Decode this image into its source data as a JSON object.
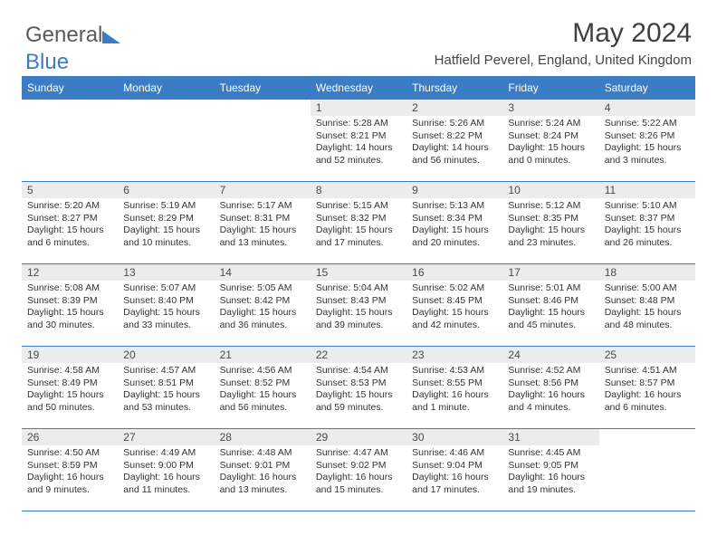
{
  "logo": {
    "text1": "General",
    "text2": "Blue"
  },
  "header": {
    "month": "May 2024",
    "location": "Hatfield Peverel, England, United Kingdom"
  },
  "colors": {
    "header_bg": "#3b7dc4",
    "header_text": "#ffffff",
    "daynum_bg": "#ececec",
    "border": "#3b7dc4"
  },
  "dayLabels": [
    "Sunday",
    "Monday",
    "Tuesday",
    "Wednesday",
    "Thursday",
    "Friday",
    "Saturday"
  ],
  "weeks": [
    [
      null,
      null,
      null,
      {
        "n": "1",
        "sr": "Sunrise: 5:28 AM",
        "ss": "Sunset: 8:21 PM",
        "dl": "Daylight: 14 hours and 52 minutes."
      },
      {
        "n": "2",
        "sr": "Sunrise: 5:26 AM",
        "ss": "Sunset: 8:22 PM",
        "dl": "Daylight: 14 hours and 56 minutes."
      },
      {
        "n": "3",
        "sr": "Sunrise: 5:24 AM",
        "ss": "Sunset: 8:24 PM",
        "dl": "Daylight: 15 hours and 0 minutes."
      },
      {
        "n": "4",
        "sr": "Sunrise: 5:22 AM",
        "ss": "Sunset: 8:26 PM",
        "dl": "Daylight: 15 hours and 3 minutes."
      }
    ],
    [
      {
        "n": "5",
        "sr": "Sunrise: 5:20 AM",
        "ss": "Sunset: 8:27 PM",
        "dl": "Daylight: 15 hours and 6 minutes."
      },
      {
        "n": "6",
        "sr": "Sunrise: 5:19 AM",
        "ss": "Sunset: 8:29 PM",
        "dl": "Daylight: 15 hours and 10 minutes."
      },
      {
        "n": "7",
        "sr": "Sunrise: 5:17 AM",
        "ss": "Sunset: 8:31 PM",
        "dl": "Daylight: 15 hours and 13 minutes."
      },
      {
        "n": "8",
        "sr": "Sunrise: 5:15 AM",
        "ss": "Sunset: 8:32 PM",
        "dl": "Daylight: 15 hours and 17 minutes."
      },
      {
        "n": "9",
        "sr": "Sunrise: 5:13 AM",
        "ss": "Sunset: 8:34 PM",
        "dl": "Daylight: 15 hours and 20 minutes."
      },
      {
        "n": "10",
        "sr": "Sunrise: 5:12 AM",
        "ss": "Sunset: 8:35 PM",
        "dl": "Daylight: 15 hours and 23 minutes."
      },
      {
        "n": "11",
        "sr": "Sunrise: 5:10 AM",
        "ss": "Sunset: 8:37 PM",
        "dl": "Daylight: 15 hours and 26 minutes."
      }
    ],
    [
      {
        "n": "12",
        "sr": "Sunrise: 5:08 AM",
        "ss": "Sunset: 8:39 PM",
        "dl": "Daylight: 15 hours and 30 minutes."
      },
      {
        "n": "13",
        "sr": "Sunrise: 5:07 AM",
        "ss": "Sunset: 8:40 PM",
        "dl": "Daylight: 15 hours and 33 minutes."
      },
      {
        "n": "14",
        "sr": "Sunrise: 5:05 AM",
        "ss": "Sunset: 8:42 PM",
        "dl": "Daylight: 15 hours and 36 minutes."
      },
      {
        "n": "15",
        "sr": "Sunrise: 5:04 AM",
        "ss": "Sunset: 8:43 PM",
        "dl": "Daylight: 15 hours and 39 minutes."
      },
      {
        "n": "16",
        "sr": "Sunrise: 5:02 AM",
        "ss": "Sunset: 8:45 PM",
        "dl": "Daylight: 15 hours and 42 minutes."
      },
      {
        "n": "17",
        "sr": "Sunrise: 5:01 AM",
        "ss": "Sunset: 8:46 PM",
        "dl": "Daylight: 15 hours and 45 minutes."
      },
      {
        "n": "18",
        "sr": "Sunrise: 5:00 AM",
        "ss": "Sunset: 8:48 PM",
        "dl": "Daylight: 15 hours and 48 minutes."
      }
    ],
    [
      {
        "n": "19",
        "sr": "Sunrise: 4:58 AM",
        "ss": "Sunset: 8:49 PM",
        "dl": "Daylight: 15 hours and 50 minutes."
      },
      {
        "n": "20",
        "sr": "Sunrise: 4:57 AM",
        "ss": "Sunset: 8:51 PM",
        "dl": "Daylight: 15 hours and 53 minutes."
      },
      {
        "n": "21",
        "sr": "Sunrise: 4:56 AM",
        "ss": "Sunset: 8:52 PM",
        "dl": "Daylight: 15 hours and 56 minutes."
      },
      {
        "n": "22",
        "sr": "Sunrise: 4:54 AM",
        "ss": "Sunset: 8:53 PM",
        "dl": "Daylight: 15 hours and 59 minutes."
      },
      {
        "n": "23",
        "sr": "Sunrise: 4:53 AM",
        "ss": "Sunset: 8:55 PM",
        "dl": "Daylight: 16 hours and 1 minute."
      },
      {
        "n": "24",
        "sr": "Sunrise: 4:52 AM",
        "ss": "Sunset: 8:56 PM",
        "dl": "Daylight: 16 hours and 4 minutes."
      },
      {
        "n": "25",
        "sr": "Sunrise: 4:51 AM",
        "ss": "Sunset: 8:57 PM",
        "dl": "Daylight: 16 hours and 6 minutes."
      }
    ],
    [
      {
        "n": "26",
        "sr": "Sunrise: 4:50 AM",
        "ss": "Sunset: 8:59 PM",
        "dl": "Daylight: 16 hours and 9 minutes."
      },
      {
        "n": "27",
        "sr": "Sunrise: 4:49 AM",
        "ss": "Sunset: 9:00 PM",
        "dl": "Daylight: 16 hours and 11 minutes."
      },
      {
        "n": "28",
        "sr": "Sunrise: 4:48 AM",
        "ss": "Sunset: 9:01 PM",
        "dl": "Daylight: 16 hours and 13 minutes."
      },
      {
        "n": "29",
        "sr": "Sunrise: 4:47 AM",
        "ss": "Sunset: 9:02 PM",
        "dl": "Daylight: 16 hours and 15 minutes."
      },
      {
        "n": "30",
        "sr": "Sunrise: 4:46 AM",
        "ss": "Sunset: 9:04 PM",
        "dl": "Daylight: 16 hours and 17 minutes."
      },
      {
        "n": "31",
        "sr": "Sunrise: 4:45 AM",
        "ss": "Sunset: 9:05 PM",
        "dl": "Daylight: 16 hours and 19 minutes."
      },
      null
    ]
  ]
}
